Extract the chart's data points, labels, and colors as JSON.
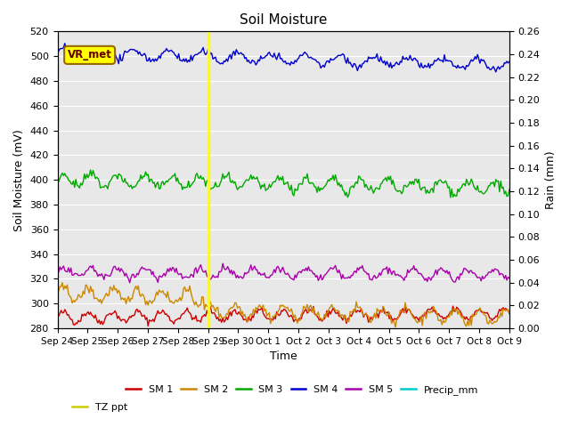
{
  "title": "Soil Moisture",
  "xlabel": "Time",
  "ylabel_left": "Soil Moisture (mV)",
  "ylabel_right": "Rain (mm)",
  "ylim_left": [
    280,
    520
  ],
  "ylim_right": [
    0.0,
    0.26
  ],
  "yticks_left": [
    280,
    300,
    320,
    340,
    360,
    380,
    400,
    420,
    440,
    460,
    480,
    500,
    520
  ],
  "yticks_right": [
    0.0,
    0.02,
    0.04,
    0.06,
    0.08,
    0.1,
    0.12,
    0.14,
    0.16,
    0.18,
    0.2,
    0.22,
    0.24,
    0.26
  ],
  "n_points": 370,
  "vline_x_idx": 120,
  "vr_met_label": "VR_met",
  "series": {
    "SM1": {
      "color": "#cc0000",
      "base": 289,
      "amplitude": 4.0,
      "trend": 0.008,
      "freq_scale": 20,
      "noise": 1.5
    },
    "SM2": {
      "color": "#cc8800",
      "base": 308,
      "amplitude": 5.0,
      "trend": -0.025,
      "freq_scale": 20,
      "noise": 2.0,
      "drop_after_vline": 10
    },
    "SM3": {
      "color": "#00aa00",
      "base": 400,
      "amplitude": 5.0,
      "trend": -0.018,
      "freq_scale": 22,
      "noise": 2.0
    },
    "SM4": {
      "color": "#0000cc",
      "base": 503,
      "amplitude": 4.0,
      "trend": -0.028,
      "freq_scale": 28,
      "noise": 1.5
    },
    "SM5": {
      "color": "#aa00aa",
      "base": 325,
      "amplitude": 4.0,
      "trend": -0.003,
      "freq_scale": 22,
      "noise": 1.5
    }
  },
  "legend_entries": [
    "SM 1",
    "SM 2",
    "SM 3",
    "SM 4",
    "SM 5",
    "Precip_mm",
    "TZ ppt"
  ],
  "legend_colors": [
    "#cc0000",
    "#cc8800",
    "#00aa00",
    "#0000cc",
    "#aa00aa",
    "#00cccc",
    "#cccc00"
  ],
  "x_tick_labels": [
    "Sep 24",
    "Sep 25",
    "Sep 26",
    "Sep 27",
    "Sep 28",
    "Sep 29",
    "Sep 30",
    "Oct 1",
    "Oct 2",
    "Oct 3",
    "Oct 4",
    "Oct 5",
    "Oct 6",
    "Oct 7",
    "Oct 8",
    "Oct 9"
  ],
  "background_color": "#e8e8e8",
  "vline_color": "#ffff00",
  "vr_met_box_facecolor": "#ffff00",
  "vr_met_box_edgecolor": "#996600",
  "vr_met_text_color": "#660000"
}
